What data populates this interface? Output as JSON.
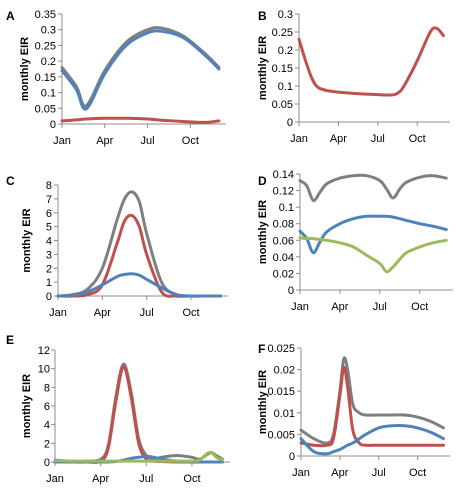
{
  "chart_data": [
    {
      "panel": "A",
      "type": "line",
      "ylabel": "monthly EIR",
      "ylim": [
        0,
        0.35
      ],
      "yticks": [
        "0",
        "0.05",
        "0.1",
        "0.15",
        "0.2",
        "0.25",
        "0.3",
        "0.35"
      ],
      "xticks": [
        "Jan",
        "Apr",
        "Jul",
        "Oct"
      ],
      "x": [
        0,
        1,
        1.7,
        3,
        4.5,
        6,
        7,
        8.5,
        10,
        11
      ],
      "series": [
        {
          "color": "#7f7f7f",
          "values": [
            0.18,
            0.12,
            0.058,
            0.17,
            0.26,
            0.3,
            0.305,
            0.28,
            0.225,
            0.18
          ]
        },
        {
          "color": "#4f81bd",
          "values": [
            0.17,
            0.11,
            0.048,
            0.16,
            0.25,
            0.29,
            0.295,
            0.275,
            0.22,
            0.175
          ]
        },
        {
          "color": "#c0504d",
          "values": [
            0.01,
            0.013,
            0.016,
            0.018,
            0.018,
            0.016,
            0.012,
            0.008,
            0.005,
            0.01
          ]
        }
      ]
    },
    {
      "panel": "B",
      "type": "line",
      "ylabel": "monthly EIR",
      "ylim": [
        0,
        0.3
      ],
      "yticks": [
        "0",
        "0.05",
        "0.1",
        "0.15",
        "0.2",
        "0.25",
        "0.3"
      ],
      "xticks": [
        "Jan",
        "Apr",
        "Jul",
        "Oct"
      ],
      "x": [
        0,
        0.5,
        1,
        1.5,
        2.5,
        4,
        6,
        7,
        7.5,
        8,
        9,
        10,
        10.5,
        11
      ],
      "series": [
        {
          "color": "#c0504d",
          "values": [
            0.23,
            0.17,
            0.12,
            0.095,
            0.085,
            0.08,
            0.076,
            0.075,
            0.08,
            0.1,
            0.17,
            0.25,
            0.26,
            0.24
          ]
        }
      ]
    },
    {
      "panel": "C",
      "type": "line",
      "ylabel": "monthly EIR",
      "ylim": [
        0,
        8
      ],
      "yticks": [
        "0",
        "1",
        "2",
        "3",
        "4",
        "5",
        "6",
        "7",
        "8"
      ],
      "xticks": [
        "Jan",
        "Apr",
        "Jul",
        "Oct"
      ],
      "x": [
        0,
        1,
        2,
        3,
        4,
        4.5,
        5,
        5.5,
        6,
        7,
        8,
        9,
        10,
        11
      ],
      "series": [
        {
          "color": "#7f7f7f",
          "values": [
            0,
            0.1,
            0.5,
            2.0,
            5.5,
            7.0,
            7.5,
            6.8,
            4.5,
            1.0,
            0.1,
            0,
            0,
            0
          ]
        },
        {
          "color": "#c0504d",
          "values": [
            0,
            0,
            0.1,
            0.8,
            3.8,
            5.4,
            5.8,
            5.0,
            3.0,
            0.3,
            0,
            0,
            0,
            0
          ]
        },
        {
          "color": "#4f81bd",
          "values": [
            0,
            0.05,
            0.3,
            0.8,
            1.4,
            1.55,
            1.6,
            1.5,
            1.2,
            0.6,
            0.1,
            0,
            0,
            0
          ]
        }
      ]
    },
    {
      "panel": "D",
      "type": "line",
      "ylabel": "monthly EIR",
      "ylim": [
        0,
        0.14
      ],
      "yticks": [
        "0",
        "0.02",
        "0.04",
        "0.06",
        "0.08",
        "0.1",
        "0.12",
        "0.14"
      ],
      "xticks": [
        "Jan",
        "Apr",
        "Jul",
        "Oct"
      ],
      "x": [
        0,
        0.5,
        1,
        1.5,
        2,
        3,
        4,
        5,
        6,
        6.5,
        7,
        7.5,
        8,
        9,
        10,
        11
      ],
      "series": [
        {
          "color": "#7f7f7f",
          "values": [
            0.132,
            0.126,
            0.108,
            0.118,
            0.128,
            0.135,
            0.138,
            0.138,
            0.132,
            0.122,
            0.111,
            0.122,
            0.13,
            0.136,
            0.138,
            0.135
          ]
        },
        {
          "color": "#4f81bd",
          "values": [
            0.071,
            0.062,
            0.045,
            0.058,
            0.07,
            0.08,
            0.086,
            0.089,
            0.089,
            0.089,
            0.088,
            0.086,
            0.084,
            0.08,
            0.077,
            0.073
          ]
        },
        {
          "color": "#9bbb59",
          "values": [
            0.063,
            0.062,
            0.062,
            0.061,
            0.06,
            0.057,
            0.052,
            0.042,
            0.032,
            0.022,
            0.028,
            0.037,
            0.045,
            0.052,
            0.057,
            0.06
          ]
        }
      ]
    },
    {
      "panel": "E",
      "type": "line",
      "ylabel": "monthly EIR",
      "ylim": [
        0,
        12
      ],
      "yticks": [
        "0",
        "2",
        "4",
        "6",
        "8",
        "10",
        "12"
      ],
      "xticks": [
        "Jan",
        "Apr",
        "Jul",
        "Oct"
      ],
      "x": [
        0,
        1,
        2,
        3,
        3.5,
        4,
        4.5,
        5,
        5.5,
        6,
        6.5,
        7,
        8,
        9,
        9.5,
        10,
        10.3,
        10.6,
        11
      ],
      "series": [
        {
          "color": "#7f7f7f",
          "values": [
            0.2,
            0.1,
            0.1,
            0.3,
            1.8,
            7.0,
            10.5,
            7.5,
            2.5,
            0.7,
            0.4,
            0.5,
            0.7,
            0.5,
            0.3,
            0.8,
            1.0,
            0.7,
            0.3
          ]
        },
        {
          "color": "#c0504d",
          "values": [
            0,
            0,
            0,
            0.1,
            1.5,
            6.5,
            10.2,
            7.0,
            2.0,
            0.3,
            0.1,
            0.05,
            0,
            0,
            0,
            0,
            0,
            0,
            0
          ]
        },
        {
          "color": "#4f81bd",
          "values": [
            0,
            0,
            0,
            0,
            0,
            0.05,
            0.2,
            0.4,
            0.5,
            0.6,
            0.5,
            0.3,
            0.1,
            0,
            0,
            0,
            0,
            0,
            0
          ]
        },
        {
          "color": "#9bbb59",
          "values": [
            0.15,
            0.1,
            0.1,
            0.1,
            0.1,
            0.1,
            0.1,
            0.1,
            0.1,
            0.1,
            0.1,
            0.1,
            0.1,
            0.1,
            0.2,
            0.9,
            1.0,
            0.5,
            0.2
          ]
        }
      ]
    },
    {
      "panel": "F",
      "type": "line",
      "ylabel": "monthly EIR",
      "ylim": [
        0,
        0.025
      ],
      "yticks": [
        "0",
        "0.005",
        "0.01",
        "0.015",
        "0.02",
        "0.025"
      ],
      "xticks": [
        "Jan",
        "Apr",
        "Jul",
        "Oct"
      ],
      "x": [
        0,
        1,
        2,
        2.5,
        3,
        3.3,
        3.6,
        4,
        4.5,
        5,
        6,
        7,
        8,
        9,
        10,
        11
      ],
      "series": [
        {
          "color": "#7f7f7f",
          "values": [
            0.006,
            0.004,
            0.003,
            0.005,
            0.015,
            0.0225,
            0.02,
            0.012,
            0.01,
            0.0095,
            0.0095,
            0.0095,
            0.0095,
            0.009,
            0.008,
            0.0065
          ]
        },
        {
          "color": "#c0504d",
          "values": [
            0.003,
            0.0025,
            0.0025,
            0.004,
            0.014,
            0.0205,
            0.016,
            0.006,
            0.003,
            0.0025,
            0.0025,
            0.0025,
            0.0025,
            0.0025,
            0.0025,
            0.0025
          ]
        },
        {
          "color": "#4f81bd",
          "values": [
            0.004,
            0.001,
            0.0005,
            0.001,
            0.0015,
            0.002,
            0.0025,
            0.003,
            0.004,
            0.005,
            0.0065,
            0.007,
            0.007,
            0.0065,
            0.0055,
            0.004
          ]
        }
      ]
    }
  ]
}
